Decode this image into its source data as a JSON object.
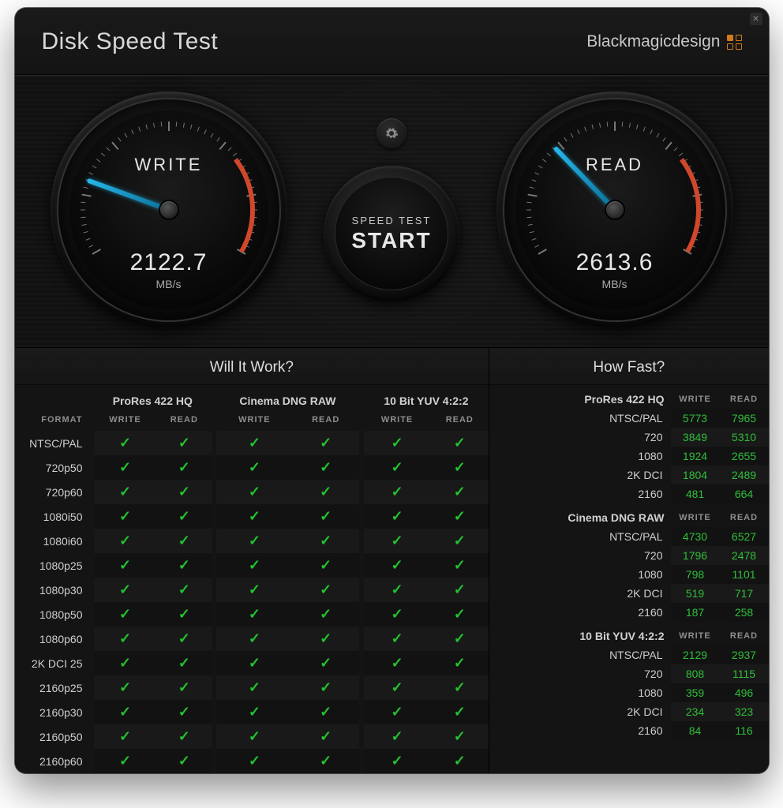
{
  "app": {
    "title": "Disk Speed Test",
    "brand": "Blackmagicdesign"
  },
  "buttons": {
    "start_small": "SPEED TEST",
    "start_big": "START"
  },
  "gauges": {
    "write": {
      "label": "WRITE",
      "value": "2122.7",
      "unit": "MB/s",
      "needle_deg": -70,
      "max": 6000
    },
    "read": {
      "label": "READ",
      "value": "2613.6",
      "unit": "MB/s",
      "needle_deg": -44,
      "max": 6000
    }
  },
  "colors": {
    "needle": "#27b7ea",
    "redzone": "#d0472b",
    "check": "#22c32f",
    "value_green": "#2fbf3a",
    "text": "#d8d8d8",
    "muted": "#8e8e8e",
    "panel_bg": "#141414",
    "row_alt_a": "#191919",
    "row_alt_b": "#121212"
  },
  "will_it_work": {
    "title": "Will It Work?",
    "codecs": [
      "ProRes 422 HQ",
      "Cinema DNG RAW",
      "10 Bit YUV 4:2:2"
    ],
    "sub": [
      "WRITE",
      "READ"
    ],
    "format_header": "FORMAT",
    "formats": [
      "NTSC/PAL",
      "720p50",
      "720p60",
      "1080i50",
      "1080i60",
      "1080p25",
      "1080p30",
      "1080p50",
      "1080p60",
      "2K DCI 25",
      "2160p25",
      "2160p30",
      "2160p50",
      "2160p60"
    ],
    "all_pass": true
  },
  "how_fast": {
    "title": "How Fast?",
    "sections": [
      {
        "codec": "ProRes 422 HQ",
        "rows": [
          {
            "fmt": "NTSC/PAL",
            "w": "5773",
            "r": "7965"
          },
          {
            "fmt": "720",
            "w": "3849",
            "r": "5310"
          },
          {
            "fmt": "1080",
            "w": "1924",
            "r": "2655"
          },
          {
            "fmt": "2K DCI",
            "w": "1804",
            "r": "2489"
          },
          {
            "fmt": "2160",
            "w": "481",
            "r": "664"
          }
        ]
      },
      {
        "codec": "Cinema DNG RAW",
        "rows": [
          {
            "fmt": "NTSC/PAL",
            "w": "4730",
            "r": "6527"
          },
          {
            "fmt": "720",
            "w": "1796",
            "r": "2478"
          },
          {
            "fmt": "1080",
            "w": "798",
            "r": "1101"
          },
          {
            "fmt": "2K DCI",
            "w": "519",
            "r": "717"
          },
          {
            "fmt": "2160",
            "w": "187",
            "r": "258"
          }
        ]
      },
      {
        "codec": "10 Bit YUV 4:2:2",
        "rows": [
          {
            "fmt": "NTSC/PAL",
            "w": "2129",
            "r": "2937"
          },
          {
            "fmt": "720",
            "w": "808",
            "r": "1115"
          },
          {
            "fmt": "1080",
            "w": "359",
            "r": "496"
          },
          {
            "fmt": "2K DCI",
            "w": "234",
            "r": "323"
          },
          {
            "fmt": "2160",
            "w": "84",
            "r": "116"
          }
        ]
      }
    ]
  }
}
